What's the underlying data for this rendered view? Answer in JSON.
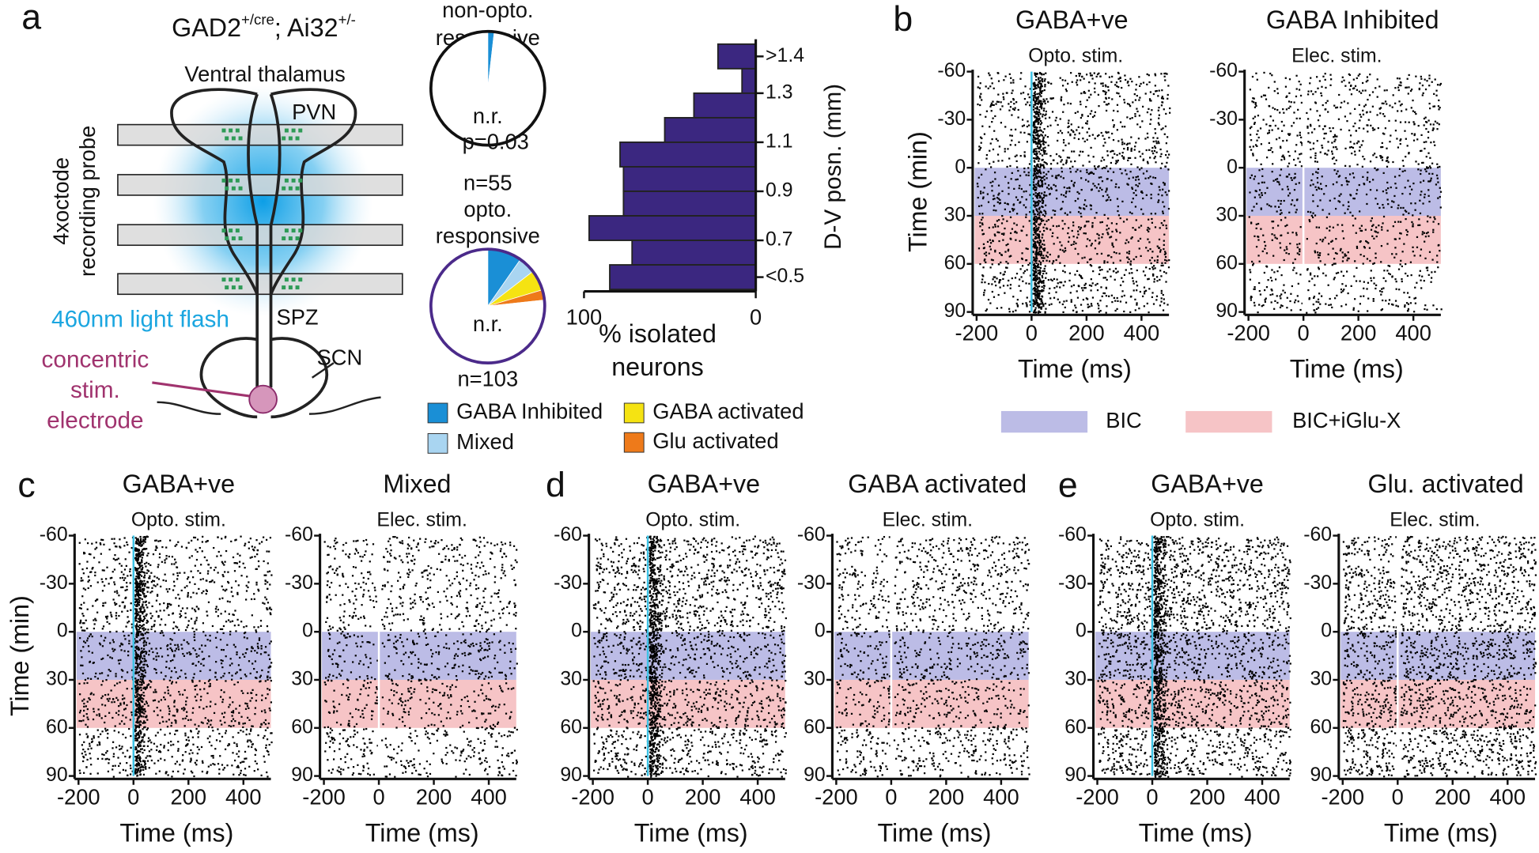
{
  "panel_labels": [
    "a",
    "b",
    "c",
    "d",
    "e"
  ],
  "diagram": {
    "genotype": "GAD2",
    "genotype_sup": "+/cre",
    "reporter": "; Ai32",
    "reporter_sup": "+/-",
    "region": "Ventral thalamus",
    "probe": [
      "4xoctode",
      "recording probe"
    ],
    "nucleus_labels": [
      "PVN",
      "SPZ",
      "SCN"
    ],
    "light": "460nm light flash",
    "electrode": [
      "concentric",
      "stim.",
      "electrode"
    ]
  },
  "condition_bands": [
    {
      "name": "BIC",
      "range": [
        0,
        30
      ],
      "color": "#bcbce6"
    },
    {
      "name": "BIC+iGlu-X",
      "range": [
        30,
        60
      ],
      "color": "#f6c4c6"
    }
  ],
  "chart_data": [
    {
      "type": "pie",
      "title_lines": [
        "non-opto.",
        "responsive"
      ],
      "border": "#111111",
      "categories": [
        "GABA Inhibited",
        "n.r."
      ],
      "values": [
        1,
        54
      ],
      "colors": [
        "#1a8fd6",
        "#ffffff"
      ],
      "annotations": [
        "p=0.03",
        "n=55"
      ]
    },
    {
      "type": "pie",
      "title_lines": [
        "opto.",
        "responsive"
      ],
      "border": "#4b2a8a",
      "categories": [
        "GABA Inhibited",
        "Mixed",
        "GABA activated",
        "Glu activated",
        "n.r."
      ],
      "values": [
        10,
        5,
        6,
        3,
        79
      ],
      "colors": [
        "#1a8fd6",
        "#a9d5f1",
        "#f5e312",
        "#ee7a1a",
        "#ffffff"
      ],
      "annotations": [
        "n=103"
      ]
    },
    {
      "type": "histogram",
      "orientation": "horizontal",
      "color": "#3b2780",
      "xlabel_lines": [
        "% isolated",
        "neurons"
      ],
      "ylabel": "D-V posn. (mm)",
      "bins": [
        1.5,
        1.4,
        1.3,
        1.2,
        1.1,
        1.0,
        0.9,
        0.8,
        0.7,
        0.6,
        0.5
      ],
      "values": [
        22,
        8,
        36,
        53,
        79,
        77,
        77,
        97,
        72,
        85
      ],
      "xlim": [
        100,
        0
      ],
      "xticks": [
        100,
        0
      ],
      "ylim": [
        0.5,
        1.5
      ],
      "yticks": [
        {
          "value": 1.45,
          "label": ">1.4"
        },
        1.3,
        1.1,
        0.9,
        0.7,
        {
          "value": 0.55,
          "label": "<0.5"
        }
      ]
    },
    {
      "type": "raster",
      "title": "GABA+ve",
      "subtitle": "Opto. stim.",
      "xlabel": "Time (ms)",
      "ylabel": "Time (min)",
      "stim_color": "#3ec3e6",
      "xlim": [
        -200,
        500
      ],
      "xticks": [
        -200,
        0,
        200,
        400
      ],
      "ylim": [
        -60,
        90
      ],
      "yticks": [
        -60,
        -30,
        0,
        30,
        60,
        90
      ]
    },
    {
      "type": "raster",
      "title": "GABA Inhibited",
      "subtitle": "Elec. stim.",
      "xlabel": "Time (ms)",
      "stim_color": "#ffffff",
      "xlim": [
        -200,
        500
      ],
      "xticks": [
        -200,
        0,
        200,
        400
      ],
      "ylim": [
        -60,
        90
      ],
      "yticks": [
        -60,
        -30,
        0,
        30,
        60,
        90
      ]
    },
    {
      "type": "raster",
      "title": "GABA+ve",
      "subtitle": "Opto. stim.",
      "xlabel": "Time (ms)",
      "ylabel": "Time (min)",
      "stim_color": "#3ec3e6",
      "xlim": [
        -200,
        500
      ],
      "xticks": [
        -200,
        0,
        200,
        400
      ],
      "ylim": [
        -60,
        90
      ],
      "yticks": [
        -60,
        -30,
        0,
        30,
        60,
        90
      ]
    },
    {
      "type": "raster",
      "title": "Mixed",
      "subtitle": "Elec. stim.",
      "xlabel": "Time (ms)",
      "stim_color": "#ffffff",
      "xlim": [
        -200,
        500
      ],
      "xticks": [
        -200,
        0,
        200,
        400
      ],
      "ylim": [
        -60,
        90
      ],
      "yticks": [
        -60,
        -30,
        0,
        30,
        60,
        90
      ]
    },
    {
      "type": "raster",
      "title": "GABA+ve",
      "subtitle": "Opto. stim.",
      "xlabel": "Time (ms)",
      "stim_color": "#3ec3e6",
      "xlim": [
        -200,
        500
      ],
      "xticks": [
        -200,
        0,
        200,
        400
      ],
      "ylim": [
        -60,
        90
      ],
      "yticks": [
        -60,
        -30,
        0,
        30,
        60,
        90
      ]
    },
    {
      "type": "raster",
      "title": "GABA activated",
      "subtitle": "Elec. stim.",
      "xlabel": "Time (ms)",
      "stim_color": "#ffffff",
      "xlim": [
        -200,
        500
      ],
      "xticks": [
        -200,
        0,
        200,
        400
      ],
      "ylim": [
        -60,
        90
      ],
      "yticks": [
        -60,
        -30,
        0,
        30,
        60,
        90
      ]
    },
    {
      "type": "raster",
      "title": "GABA+ve",
      "subtitle": "Opto. stim.",
      "xlabel": "Time (ms)",
      "stim_color": "#3ec3e6",
      "xlim": [
        -200,
        500
      ],
      "xticks": [
        -200,
        0,
        200,
        400
      ],
      "ylim": [
        -60,
        90
      ],
      "yticks": [
        -60,
        -30,
        0,
        30,
        60,
        90
      ]
    },
    {
      "type": "raster",
      "title": "Glu. activated",
      "subtitle": "Elec. stim.",
      "xlabel": "Time (ms)",
      "stim_color": "#ffffff",
      "xlim": [
        -200,
        500
      ],
      "xticks": [
        -200,
        0,
        200,
        400
      ],
      "ylim": [
        -60,
        90
      ],
      "yticks": [
        -60,
        -30,
        0,
        30,
        60,
        90
      ]
    }
  ]
}
